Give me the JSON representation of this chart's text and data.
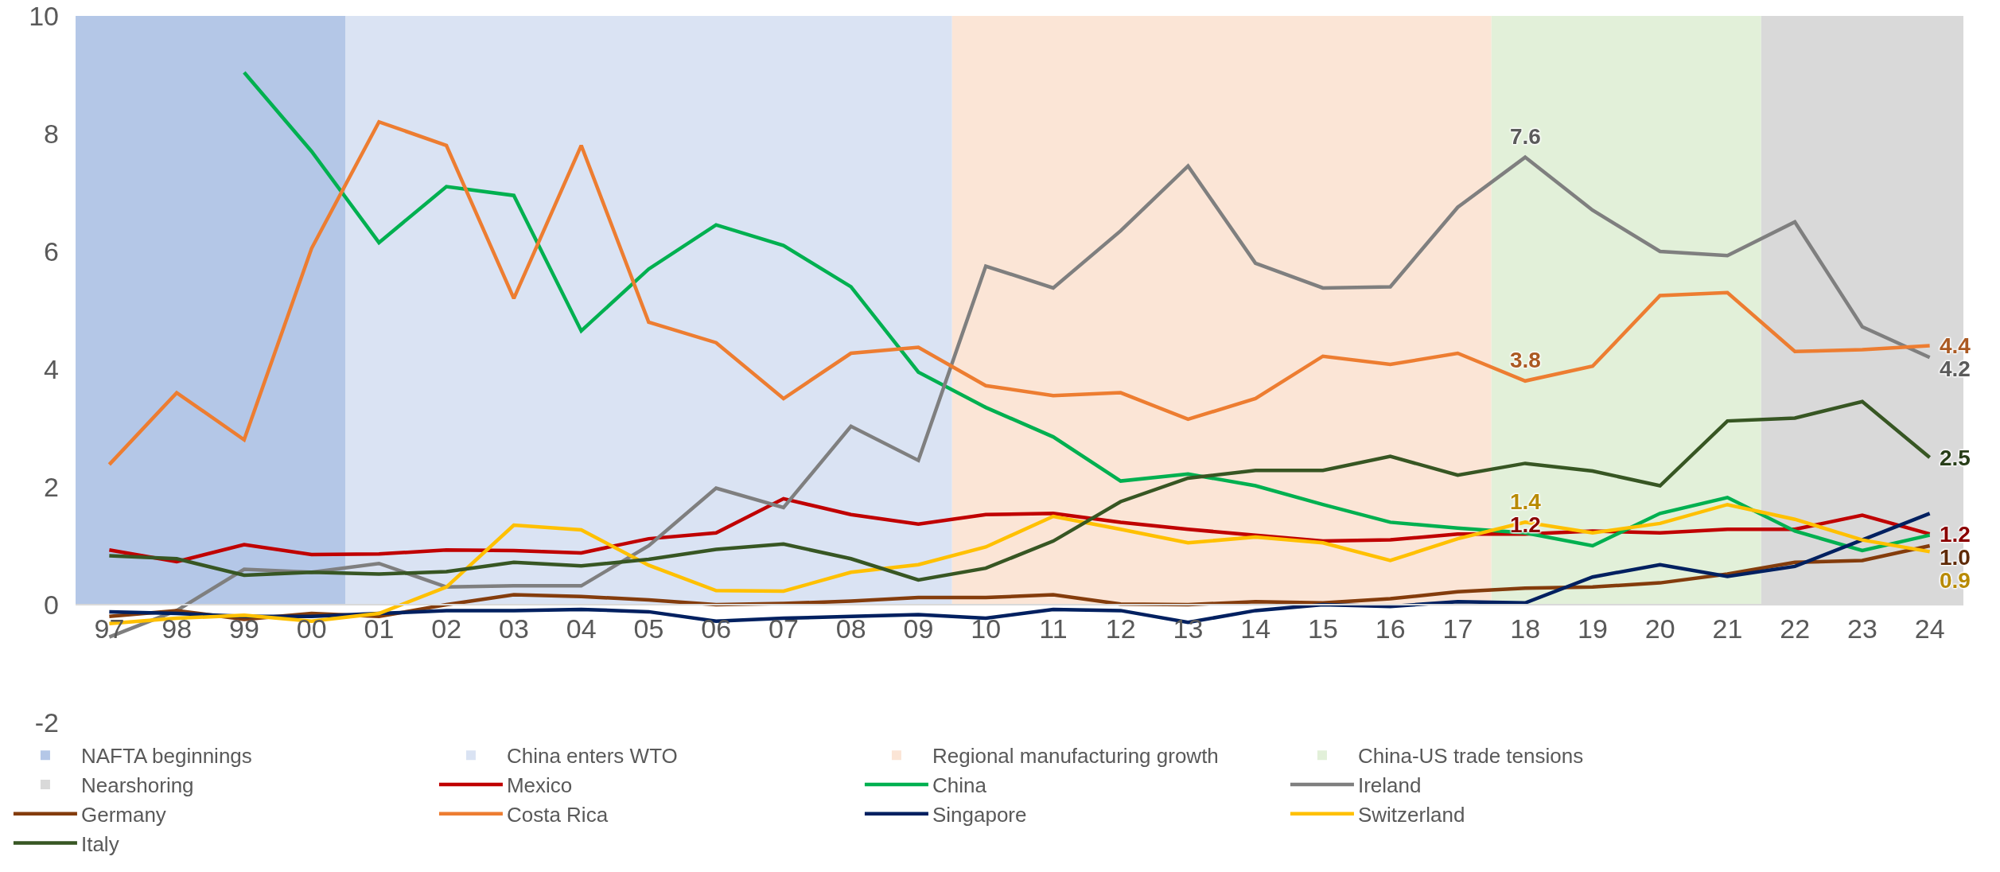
{
  "chart_data": {
    "type": "line",
    "categories": [
      "97",
      "98",
      "99",
      "00",
      "01",
      "02",
      "03",
      "04",
      "05",
      "06",
      "07",
      "08",
      "09",
      "10",
      "11",
      "12",
      "13",
      "14",
      "15",
      "16",
      "17",
      "18",
      "19",
      "20",
      "21",
      "22",
      "23",
      "24"
    ],
    "ylim": [
      -2,
      10
    ],
    "yticks": [
      -2,
      0,
      2,
      4,
      6,
      8,
      10
    ],
    "grid": false,
    "legend": "bottom",
    "bands": [
      {
        "axis": "x",
        "from": "97",
        "to": "00",
        "label": "NAFTA beginnings",
        "color": "#b4c7e7"
      },
      {
        "axis": "x",
        "from": "01",
        "to": "09",
        "label": "China enters WTO",
        "color": "#dae3f3"
      },
      {
        "axis": "x",
        "from": "10",
        "to": "17",
        "label": "Regional manufacturing growth",
        "color": "#fbe5d6"
      },
      {
        "axis": "x",
        "from": "18",
        "to": "21",
        "label": "China-US trade tensions",
        "color": "#e2f0d9"
      },
      {
        "axis": "x",
        "from": "22",
        "to": "24",
        "label": "Nearshoring",
        "color": "#d9d9d9"
      }
    ],
    "series": [
      {
        "name": "Mexico",
        "color": "#c00000",
        "values": [
          0.93,
          0.73,
          1.02,
          0.85,
          0.86,
          0.93,
          0.92,
          0.88,
          1.12,
          1.22,
          1.8,
          1.53,
          1.37,
          1.53,
          1.55,
          1.4,
          1.28,
          1.18,
          1.08,
          1.1,
          1.2,
          1.2,
          1.25,
          1.22,
          1.28,
          1.28,
          1.52,
          1.2
        ],
        "value_labels": [
          null,
          null,
          null,
          null,
          null,
          null,
          null,
          null,
          null,
          null,
          null,
          null,
          null,
          null,
          null,
          null,
          null,
          null,
          null,
          null,
          null,
          "1.2",
          null,
          null,
          null,
          null,
          null,
          "1.2"
        ]
      },
      {
        "name": "China",
        "color": "#00b050",
        "values": [
          null,
          null,
          9.04,
          7.7,
          6.15,
          7.1,
          6.95,
          4.65,
          5.7,
          6.45,
          6.1,
          5.4,
          3.95,
          3.35,
          2.85,
          2.1,
          2.22,
          2.02,
          1.7,
          1.4,
          1.3,
          1.22,
          1.0,
          1.55,
          1.82,
          1.25,
          0.92,
          1.18
        ]
      },
      {
        "name": "Ireland",
        "color": "#7f7f7f",
        "values": [
          -0.55,
          -0.1,
          0.6,
          0.55,
          0.7,
          0.3,
          0.32,
          0.32,
          1.0,
          1.98,
          1.65,
          3.03,
          2.45,
          5.75,
          5.38,
          6.35,
          7.45,
          5.8,
          5.38,
          5.4,
          6.75,
          7.6,
          6.7,
          6.0,
          5.93,
          6.5,
          4.72,
          4.2
        ],
        "value_labels": [
          null,
          null,
          null,
          null,
          null,
          null,
          null,
          null,
          null,
          null,
          null,
          null,
          null,
          null,
          null,
          null,
          null,
          null,
          null,
          null,
          null,
          "7.6",
          null,
          null,
          null,
          null,
          null,
          "4.2"
        ]
      },
      {
        "name": "Germany",
        "color": "#843c0c",
        "values": [
          -0.2,
          -0.1,
          -0.25,
          -0.15,
          -0.2,
          0.0,
          0.17,
          0.14,
          0.08,
          0.0,
          0.02,
          0.06,
          0.12,
          0.12,
          0.17,
          0.01,
          0.0,
          0.05,
          0.03,
          0.1,
          0.22,
          0.28,
          0.3,
          0.37,
          0.52,
          0.72,
          0.75,
          1.0
        ],
        "value_labels": [
          null,
          null,
          null,
          null,
          null,
          null,
          null,
          null,
          null,
          null,
          null,
          null,
          null,
          null,
          null,
          null,
          null,
          null,
          null,
          null,
          null,
          null,
          null,
          null,
          null,
          null,
          null,
          "1.0"
        ]
      },
      {
        "name": "Costa Rica",
        "color": "#ed7d31",
        "values": [
          2.38,
          3.6,
          2.8,
          6.05,
          8.2,
          7.8,
          5.2,
          7.8,
          4.8,
          4.45,
          3.5,
          4.27,
          4.37,
          3.72,
          3.55,
          3.6,
          3.15,
          3.5,
          4.22,
          4.08,
          4.27,
          3.8,
          4.05,
          5.25,
          5.3,
          4.3,
          4.33,
          4.4
        ],
        "value_labels": [
          null,
          null,
          null,
          null,
          null,
          null,
          null,
          null,
          null,
          null,
          null,
          null,
          null,
          null,
          null,
          null,
          null,
          null,
          null,
          null,
          null,
          "3.8",
          null,
          null,
          null,
          null,
          null,
          "4.4"
        ]
      },
      {
        "name": "Singapore",
        "color": "#002060",
        "values": [
          -0.12,
          -0.15,
          -0.2,
          -0.2,
          -0.15,
          -0.1,
          -0.1,
          -0.08,
          -0.12,
          -0.28,
          -0.23,
          -0.2,
          -0.17,
          -0.23,
          -0.08,
          -0.1,
          -0.3,
          -0.1,
          0.0,
          -0.03,
          0.05,
          0.03,
          0.47,
          0.68,
          0.48,
          0.65,
          1.1,
          1.55
        ]
      },
      {
        "name": "Switzerland",
        "color": "#ffc000",
        "values": [
          -0.32,
          -0.23,
          -0.18,
          -0.28,
          -0.15,
          0.3,
          1.35,
          1.27,
          0.67,
          0.24,
          0.23,
          0.55,
          0.68,
          0.98,
          1.5,
          1.28,
          1.05,
          1.15,
          1.05,
          0.75,
          1.12,
          1.4,
          1.22,
          1.38,
          1.7,
          1.45,
          1.1,
          0.9
        ],
        "value_labels": [
          null,
          null,
          null,
          null,
          null,
          null,
          null,
          null,
          null,
          null,
          null,
          null,
          null,
          null,
          null,
          null,
          null,
          null,
          null,
          null,
          null,
          "1.4",
          null,
          null,
          null,
          null,
          null,
          "0.9"
        ]
      },
      {
        "name": "Italy",
        "color": "#375623",
        "values": [
          0.83,
          0.78,
          0.5,
          0.55,
          0.52,
          0.56,
          0.72,
          0.66,
          0.77,
          0.94,
          1.03,
          0.78,
          0.42,
          0.62,
          1.08,
          1.75,
          2.15,
          2.28,
          2.28,
          2.52,
          2.2,
          2.4,
          2.27,
          2.02,
          3.12,
          3.17,
          3.45,
          2.5
        ],
        "value_labels": [
          null,
          null,
          null,
          null,
          null,
          null,
          null,
          null,
          null,
          null,
          null,
          null,
          null,
          null,
          null,
          null,
          null,
          null,
          null,
          null,
          null,
          null,
          null,
          null,
          null,
          null,
          null,
          "2.5"
        ]
      }
    ]
  }
}
